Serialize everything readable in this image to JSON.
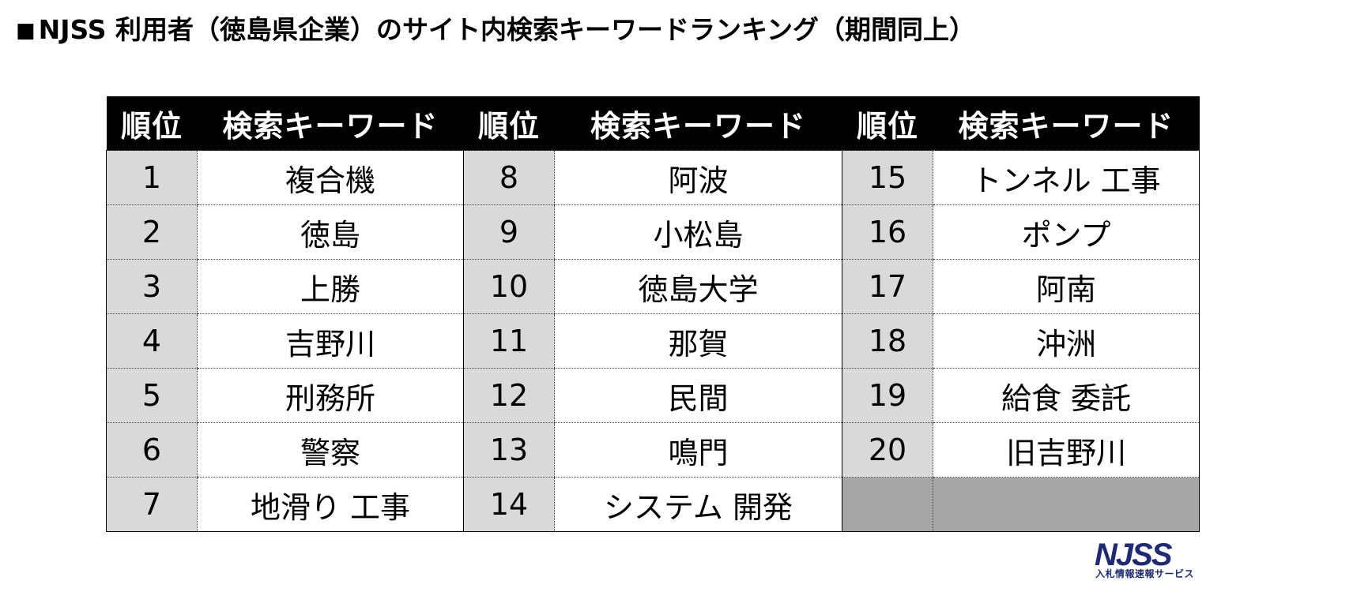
{
  "title": {
    "marker": "■",
    "text": "NJSS 利用者（徳島県企業）のサイト内検索キーワードランキング（期間同上）"
  },
  "table": {
    "headers": {
      "rank": "順位",
      "keyword": "検索キーワード"
    },
    "rows": [
      [
        {
          "rank": "1",
          "keyword": "複合機"
        },
        {
          "rank": "8",
          "keyword": "阿波"
        },
        {
          "rank": "15",
          "keyword": "トンネル 工事"
        }
      ],
      [
        {
          "rank": "2",
          "keyword": "徳島"
        },
        {
          "rank": "9",
          "keyword": "小松島"
        },
        {
          "rank": "16",
          "keyword": "ポンプ"
        }
      ],
      [
        {
          "rank": "3",
          "keyword": "上勝"
        },
        {
          "rank": "10",
          "keyword": "徳島大学"
        },
        {
          "rank": "17",
          "keyword": "阿南"
        }
      ],
      [
        {
          "rank": "4",
          "keyword": "吉野川"
        },
        {
          "rank": "11",
          "keyword": "那賀"
        },
        {
          "rank": "18",
          "keyword": "沖洲"
        }
      ],
      [
        {
          "rank": "5",
          "keyword": "刑務所"
        },
        {
          "rank": "12",
          "keyword": "民間"
        },
        {
          "rank": "19",
          "keyword": "給食 委託"
        }
      ],
      [
        {
          "rank": "6",
          "keyword": "警察"
        },
        {
          "rank": "13",
          "keyword": "鳴門"
        },
        {
          "rank": "20",
          "keyword": "旧吉野川"
        }
      ],
      [
        {
          "rank": "7",
          "keyword": "地滑り 工事"
        },
        {
          "rank": "14",
          "keyword": "システム 開発"
        },
        {
          "rank": "",
          "keyword": ""
        }
      ]
    ]
  },
  "logo": {
    "brand": "NJSS",
    "tagline": "入札情報速報サービス",
    "color": "#1d2a74"
  },
  "colors": {
    "header_bg": "#000000",
    "rank_bg": "#d9d9d9",
    "empty_bg": "#a6a6a6"
  }
}
